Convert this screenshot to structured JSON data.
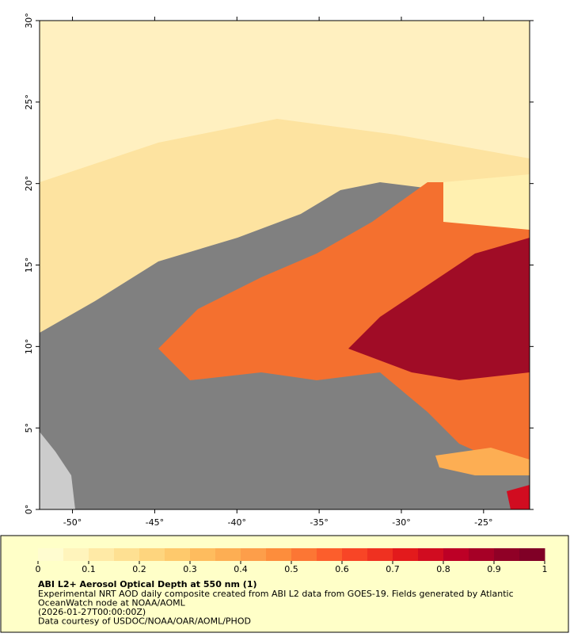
{
  "map": {
    "xlim": [
      -52,
      -22.2
    ],
    "ylim": [
      0,
      30
    ],
    "xticks": [
      {
        "value": -50,
        "label": "-50°"
      },
      {
        "value": -45,
        "label": "-45°"
      },
      {
        "value": -40,
        "label": "-40°"
      },
      {
        "value": -35,
        "label": "-35°"
      },
      {
        "value": -30,
        "label": "-30°"
      },
      {
        "value": -25,
        "label": "-25°"
      }
    ],
    "yticks": [
      {
        "value": 0,
        "label": "0°"
      },
      {
        "value": 5,
        "label": "5°"
      },
      {
        "value": 10,
        "label": "10°"
      },
      {
        "value": 15,
        "label": "15°"
      },
      {
        "value": 20,
        "label": "20°"
      },
      {
        "value": 25,
        "label": "25°"
      },
      {
        "value": 30,
        "label": "30°"
      }
    ]
  },
  "colorbar": {
    "lim": [
      0,
      1
    ],
    "ticks": [
      0,
      0.1,
      0.2,
      0.3,
      0.4,
      0.5,
      0.6,
      0.7,
      0.8,
      0.9,
      1
    ],
    "colors": [
      "#fffcd0",
      "#fff4bc",
      "#ffeaa6",
      "#fee092",
      "#fed57e",
      "#fec96c",
      "#febc5e",
      "#fdae53",
      "#fd9e4a",
      "#fd8d3c",
      "#fc7634",
      "#fc5e2c",
      "#f84526",
      "#ef3121",
      "#e31a1c",
      "#d10c20",
      "#bd0026",
      "#a60026",
      "#900026",
      "#800026"
    ]
  },
  "legend": {
    "title": "ABI L2+ Aerosol Optical Depth at 550 nm (1)",
    "lines": [
      "Experimental NRT AOD daily composite created from ABI L2 data from GOES-19. Fields generated by Atlantic",
      "OceanWatch node at NOAA/AOML",
      "(2026-01-27T00:00:00Z)",
      "Data courtesy of USDOC/NOAA/OAR/AOML/PHOD"
    ]
  }
}
